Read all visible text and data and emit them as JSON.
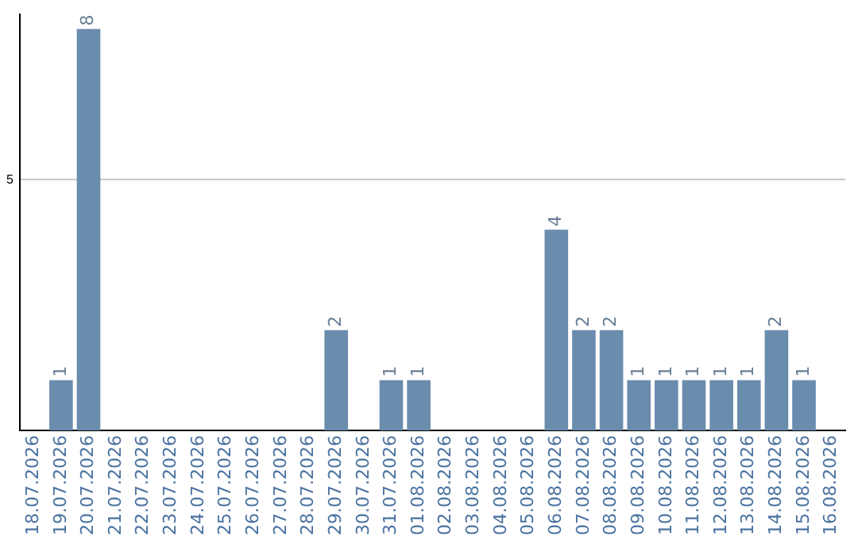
{
  "chart_data": {
    "type": "bar",
    "categories": [
      "18.07.2026",
      "19.07.2026",
      "20.07.2026",
      "21.07.2026",
      "22.07.2026",
      "23.07.2026",
      "24.07.2026",
      "25.07.2026",
      "26.07.2026",
      "27.07.2026",
      "28.07.2026",
      "29.07.2026",
      "30.07.2026",
      "31.07.2026",
      "01.08.2026",
      "02.08.2026",
      "03.08.2026",
      "04.08.2026",
      "05.08.2026",
      "06.08.2026",
      "07.08.2026",
      "08.08.2026",
      "09.08.2026",
      "10.08.2026",
      "11.08.2026",
      "12.08.2026",
      "13.08.2026",
      "14.08.2026",
      "15.08.2026",
      "16.08.2026"
    ],
    "values": [
      0,
      1,
      8,
      0,
      0,
      0,
      0,
      0,
      0,
      0,
      0,
      2,
      0,
      1,
      1,
      0,
      0,
      0,
      0,
      4,
      2,
      2,
      1,
      1,
      1,
      1,
      1,
      2,
      1,
      0
    ],
    "value_labels": [
      null,
      "1",
      "8",
      null,
      null,
      null,
      null,
      null,
      null,
      null,
      null,
      "2",
      null,
      "1",
      "1",
      null,
      null,
      null,
      null,
      "4",
      "2",
      "2",
      "1",
      "1",
      "1",
      "1",
      "1",
      "2",
      "1",
      null
    ],
    "color": "#6a8cad",
    "ylim": [
      0,
      8.3
    ],
    "yticks": [
      5
    ],
    "grid": "y",
    "legend": false
  }
}
